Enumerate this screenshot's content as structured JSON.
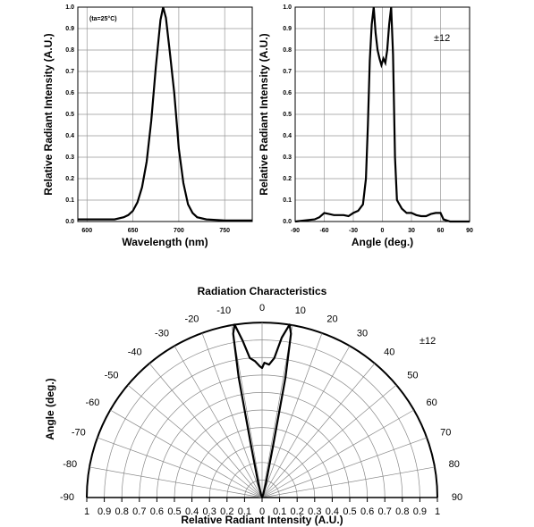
{
  "chart_data": [
    {
      "type": "line",
      "annotation": "(ta=25°C)",
      "xlabel": "Wavelength (nm)",
      "ylabel": "Relative Radiant Intensity (A.U.)",
      "x": [
        590,
        600,
        620,
        630,
        640,
        645,
        650,
        655,
        660,
        665,
        670,
        675,
        680,
        683,
        686,
        690,
        695,
        698,
        700,
        705,
        710,
        715,
        720,
        730,
        750,
        780
      ],
      "values": [
        0.01,
        0.01,
        0.01,
        0.01,
        0.02,
        0.03,
        0.05,
        0.09,
        0.16,
        0.28,
        0.47,
        0.72,
        0.94,
        1.0,
        0.95,
        0.8,
        0.6,
        0.45,
        0.34,
        0.18,
        0.08,
        0.04,
        0.02,
        0.01,
        0.005,
        0.005
      ],
      "color": "#000000",
      "xlim": [
        590,
        780
      ],
      "xticks": [
        600,
        650,
        700,
        750
      ],
      "ylim": [
        0,
        1
      ],
      "yticks": [
        {
          "value": 0,
          "label": "0.0"
        },
        0.1,
        0.2,
        0.3,
        0.4,
        0.5,
        0.6,
        0.7,
        0.8,
        0.9,
        {
          "value": 1,
          "label": "1.0"
        }
      ],
      "grid": true
    },
    {
      "type": "line",
      "annotation": "±12",
      "xlabel": "Angle (deg.)",
      "ylabel": "Relative Radiant Intensity (A.U.)",
      "x": [
        -90,
        -70,
        -65,
        -60,
        -55,
        -50,
        -40,
        -35,
        -30,
        -25,
        -20,
        -17,
        -15,
        -13,
        -11,
        -9,
        -7,
        -5,
        -3,
        -1,
        1,
        3,
        5,
        7,
        9,
        11,
        13,
        15,
        20,
        25,
        30,
        35,
        40,
        45,
        50,
        55,
        60,
        63,
        70,
        90
      ],
      "values": [
        0,
        0.01,
        0.02,
        0.04,
        0.035,
        0.03,
        0.03,
        0.025,
        0.04,
        0.05,
        0.08,
        0.2,
        0.45,
        0.75,
        0.92,
        1.0,
        0.88,
        0.8,
        0.76,
        0.73,
        0.76,
        0.74,
        0.8,
        0.92,
        1.0,
        0.78,
        0.3,
        0.1,
        0.06,
        0.04,
        0.04,
        0.03,
        0.025,
        0.025,
        0.035,
        0.04,
        0.04,
        0.01,
        0,
        0
      ],
      "color": "#000000",
      "xlim": [
        -90,
        90
      ],
      "xticks": [
        -90,
        -60,
        -30,
        0,
        30,
        60,
        90
      ],
      "ylim": [
        0,
        1
      ],
      "yticks": [
        {
          "value": 0,
          "label": "0.0"
        },
        0.1,
        0.2,
        0.3,
        0.4,
        0.5,
        0.6,
        0.7,
        0.8,
        0.9,
        {
          "value": 1,
          "label": "1.0"
        }
      ],
      "grid": true
    },
    {
      "type": "polar",
      "title": "Radiation Characteristics",
      "annotation": "±12",
      "theta_label": "Angle (deg.)",
      "r_label": "Relative Radiant Intensity (A.U.)",
      "theta": [
        -20,
        -15,
        -12,
        -11,
        -10,
        -9,
        -7,
        -5,
        -3,
        -1,
        0,
        1,
        3,
        5,
        7,
        9,
        10,
        11,
        12,
        15,
        20
      ],
      "values": [
        0.02,
        0.08,
        0.3,
        0.7,
        0.95,
        1.0,
        0.9,
        0.8,
        0.78,
        0.75,
        0.74,
        0.77,
        0.76,
        0.8,
        0.92,
        1.0,
        0.95,
        0.7,
        0.3,
        0.08,
        0.02
      ],
      "color": "#000000",
      "rlim": [
        0,
        1
      ],
      "rticks": [
        0,
        0.1,
        0.2,
        0.3,
        0.4,
        0.5,
        0.6,
        0.7,
        0.8,
        0.9,
        1
      ],
      "thetaticks": [
        -90,
        -80,
        -70,
        -60,
        -50,
        -40,
        -30,
        -20,
        -10,
        0,
        10,
        20,
        30,
        40,
        50,
        60,
        70,
        80,
        90
      ],
      "grid": true
    }
  ]
}
